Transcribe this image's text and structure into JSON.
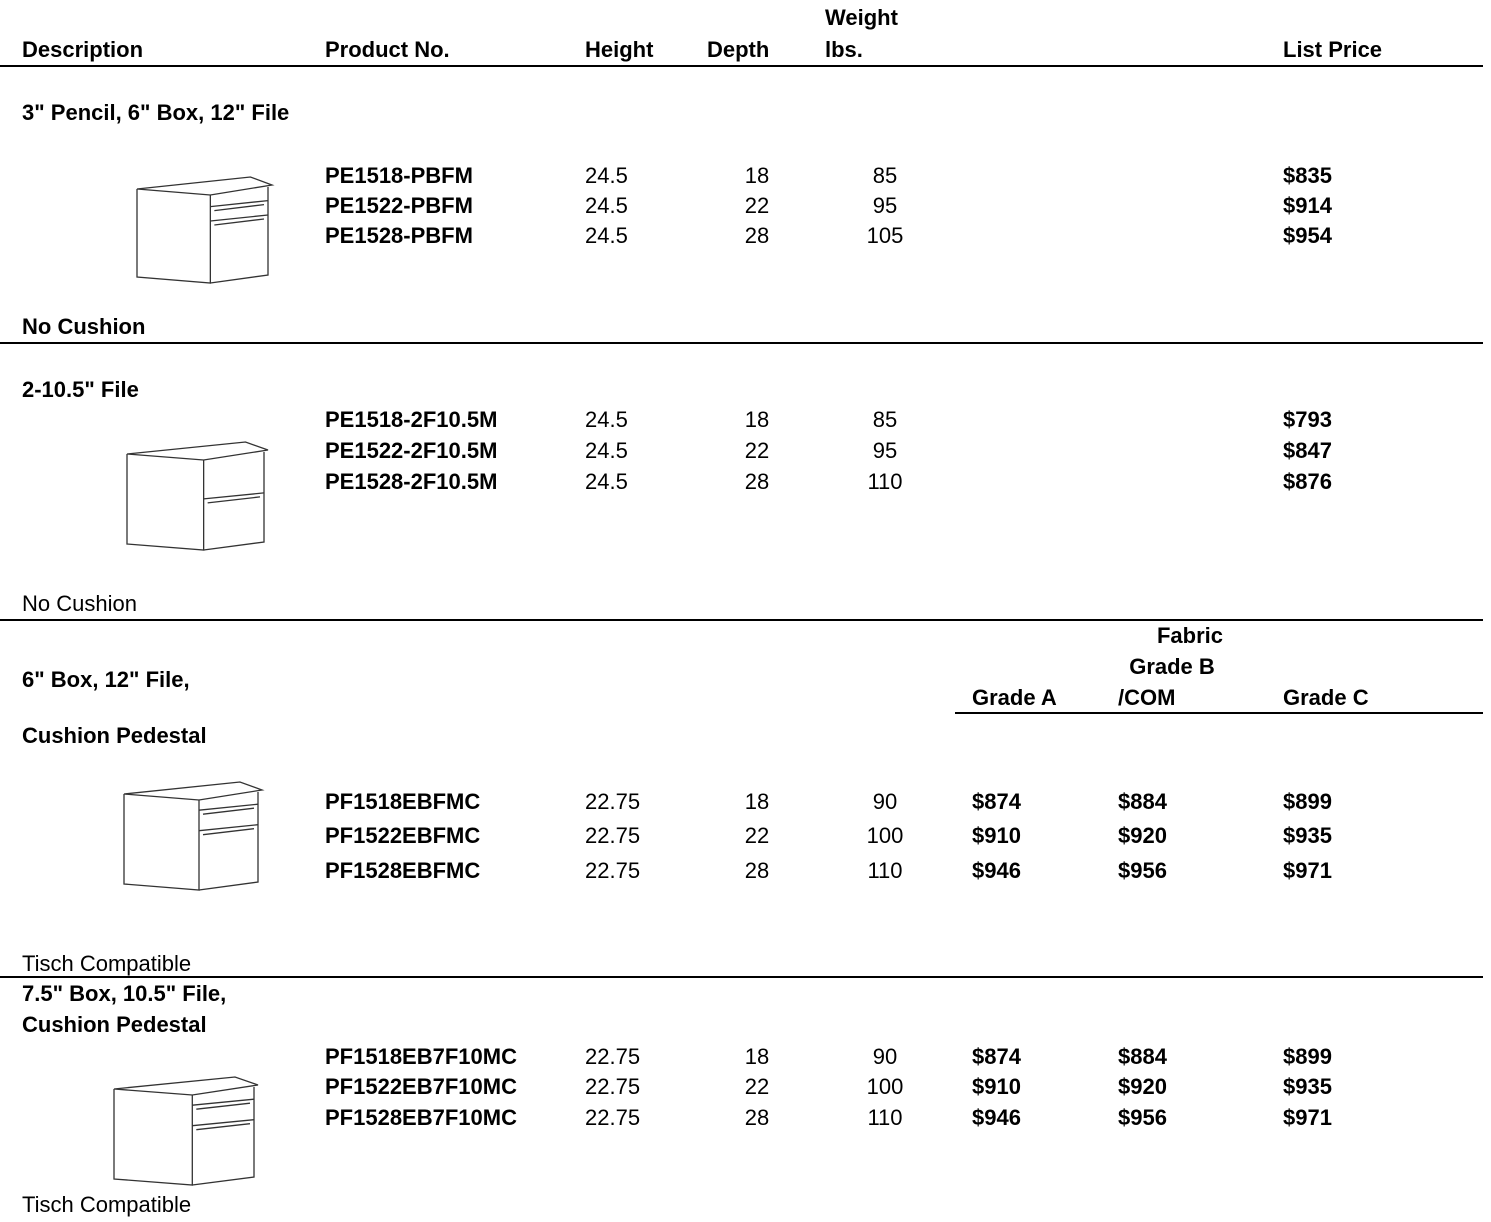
{
  "header": {
    "description": "Description",
    "product_no": "Product No.",
    "height": "Height",
    "depth": "Depth",
    "weight": [
      "Weight",
      "lbs."
    ],
    "list_price": "List Price"
  },
  "sections": [
    {
      "title": "3\" Pencil, 6\" Box, 12\" File",
      "rows": [
        [
          "PE1518-PBFM",
          "24.5",
          "18",
          "85",
          "$835"
        ],
        [
          "PE1522-PBFM",
          "24.5",
          "22",
          "95",
          "$914"
        ],
        [
          "PE1528-PBFM",
          "24.5",
          "28",
          "105",
          "$954"
        ]
      ],
      "note": "No Cushion"
    },
    {
      "title": "2-10.5\" File",
      "rows": [
        [
          "PE1518-2F10.5M",
          "24.5",
          "18",
          "85",
          "$793"
        ],
        [
          "PE1522-2F10.5M",
          "24.5",
          "22",
          "95",
          "$847"
        ],
        [
          "PE1528-2F10.5M",
          "24.5",
          "28",
          "110",
          "$876"
        ]
      ],
      "note": "No Cushion"
    },
    {
      "title": "6\" Box, 12\" File,",
      "subtitle": "Cushion Pedestal",
      "fabric_header": {
        "fabric": "Fabric",
        "grade_a": "Grade A",
        "grade_b": [
          "Grade B",
          "/COM"
        ],
        "grade_c": "Grade C"
      },
      "rows": [
        [
          "PF1518EBFMC",
          "22.75",
          "18",
          "90",
          "$874",
          "$884",
          "$899"
        ],
        [
          "PF1522EBFMC",
          "22.75",
          "22",
          "100",
          "$910",
          "$920",
          "$935"
        ],
        [
          "PF1528EBFMC",
          "22.75",
          "28",
          "110",
          "$946",
          "$956",
          "$971"
        ]
      ],
      "note": "Tisch Compatible"
    },
    {
      "title": "7.5\" Box, 10.5\" File,",
      "subtitle": "Cushion Pedestal",
      "rows": [
        [
          "PF1518EB7F10MC",
          "22.75",
          "18",
          "90",
          "$874",
          "$884",
          "$899"
        ],
        [
          "PF1522EB7F10MC",
          "22.75",
          "22",
          "100",
          "$910",
          "$920",
          "$935"
        ],
        [
          "PF1528EB7F10MC",
          "22.75",
          "28",
          "110",
          "$946",
          "$956",
          "$971"
        ]
      ],
      "note": "Tisch Compatible"
    }
  ]
}
